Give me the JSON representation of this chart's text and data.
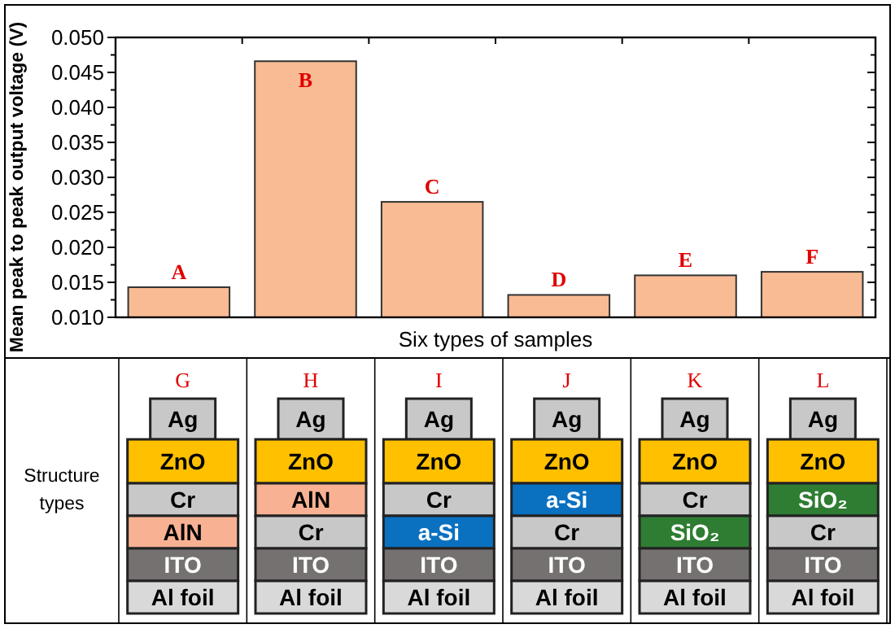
{
  "chart_data": [
    {
      "type": "bar",
      "xlabel": "Six types of samples",
      "ylabel": "Mean peak to peak output voltage (V)",
      "categories": [
        "A",
        "B",
        "C",
        "D",
        "E",
        "F"
      ],
      "values": [
        0.0143,
        0.0466,
        0.0265,
        0.0132,
        0.016,
        0.0165
      ],
      "color": "#f9bb93",
      "ylim": [
        0.01,
        0.05
      ],
      "yticks": [
        {
          "value": 0.01,
          "label": "0.010"
        },
        {
          "value": 0.015,
          "label": "0.015"
        },
        {
          "value": 0.02,
          "label": "0.020"
        },
        {
          "value": 0.025,
          "label": "0.025"
        },
        {
          "value": 0.03,
          "label": "0.030"
        },
        {
          "value": 0.035,
          "label": "0.035"
        },
        {
          "value": 0.04,
          "label": "0.040"
        },
        {
          "value": 0.045,
          "label": "0.045"
        },
        {
          "value": 0.05,
          "label": "0.050"
        }
      ],
      "grid": false
    },
    {
      "type": "other",
      "title": "Structure types",
      "categories": [
        "G",
        "H",
        "I",
        "J",
        "K",
        "L"
      ],
      "cell_labels": [
        [
          "Ag",
          "ZnO",
          "Cr",
          "AlN",
          "ITO",
          "Al foil"
        ],
        [
          "Ag",
          "ZnO",
          "AlN",
          "Cr",
          "ITO",
          "Al foil"
        ],
        [
          "Ag",
          "ZnO",
          "Cr",
          "a-Si",
          "ITO",
          "Al foil"
        ],
        [
          "Ag",
          "ZnO",
          "a-Si",
          "Cr",
          "ITO",
          "Al foil"
        ],
        [
          "Ag",
          "ZnO",
          "Cr",
          "SiO₂",
          "ITO",
          "Al foil"
        ],
        [
          "Ag",
          "ZnO",
          "SiO₂",
          "Cr",
          "ITO",
          "Al foil"
        ]
      ],
      "colors": [
        [
          "#c8c8c8",
          "#ffc000",
          "#c8c8c8",
          "#f8b293",
          "#767171",
          "#d9d9d9"
        ],
        [
          "#c8c8c8",
          "#ffc000",
          "#f8b293",
          "#c8c8c8",
          "#767171",
          "#d9d9d9"
        ],
        [
          "#c8c8c8",
          "#ffc000",
          "#c8c8c8",
          "#0a70c0",
          "#767171",
          "#d9d9d9"
        ],
        [
          "#c8c8c8",
          "#ffc000",
          "#0a70c0",
          "#c8c8c8",
          "#767171",
          "#d9d9d9"
        ],
        [
          "#c8c8c8",
          "#ffc000",
          "#c8c8c8",
          "#2e7d32",
          "#767171",
          "#d9d9d9"
        ],
        [
          "#c8c8c8",
          "#ffc000",
          "#2e7d32",
          "#c8c8c8",
          "#767171",
          "#d9d9d9"
        ]
      ]
    }
  ]
}
